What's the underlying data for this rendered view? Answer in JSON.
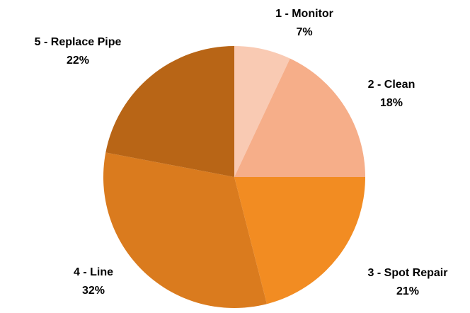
{
  "chart_data": {
    "type": "pie",
    "categories": [
      "1 - Monitor",
      "2 - Clean",
      "3 - Spot Repair",
      "4 - Line",
      "5 - Replace Pipe"
    ],
    "values": [
      7,
      18,
      21,
      32,
      22
    ],
    "value_labels": [
      "7%",
      "18%",
      "21%",
      "32%",
      "22%"
    ],
    "colors": [
      "#f9cab3",
      "#f6ae89",
      "#f28c22",
      "#da7b1e",
      "#b86516"
    ]
  }
}
